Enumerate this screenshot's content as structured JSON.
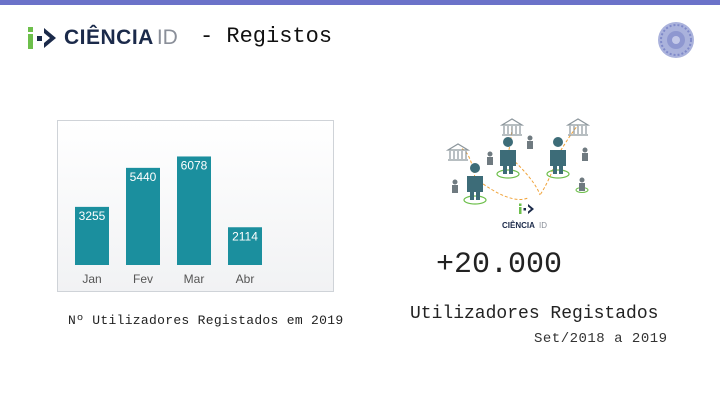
{
  "header": {
    "logo_word": "CIÊNCIA",
    "logo_id": "ID",
    "title": "- Registos"
  },
  "chart_data": {
    "type": "bar",
    "categories": [
      "Jan",
      "Fev",
      "Mar",
      "Abr"
    ],
    "values": [
      3255,
      5440,
      6078,
      2114
    ],
    "ylim": [
      0,
      7000
    ],
    "grid": false,
    "legend": "none",
    "bar_color": "#1b8f9e",
    "caption": "Nº Utilizadores Registados em 2019"
  },
  "stats": {
    "network_logo_word": "CIÊNCIA",
    "network_logo_id": "ID",
    "total": "+20.000",
    "label": "Utilizadores Registados",
    "period": "Set/2018 a 2019"
  },
  "colors": {
    "accent": "#6b72c9",
    "teal": "#1b8f9e",
    "green": "#6dbf4b",
    "navy": "#1b2a4a"
  },
  "icons": [
    "ciencia-id-logo-icon",
    "emblem-icon",
    "person-icon",
    "institution-icon"
  ]
}
